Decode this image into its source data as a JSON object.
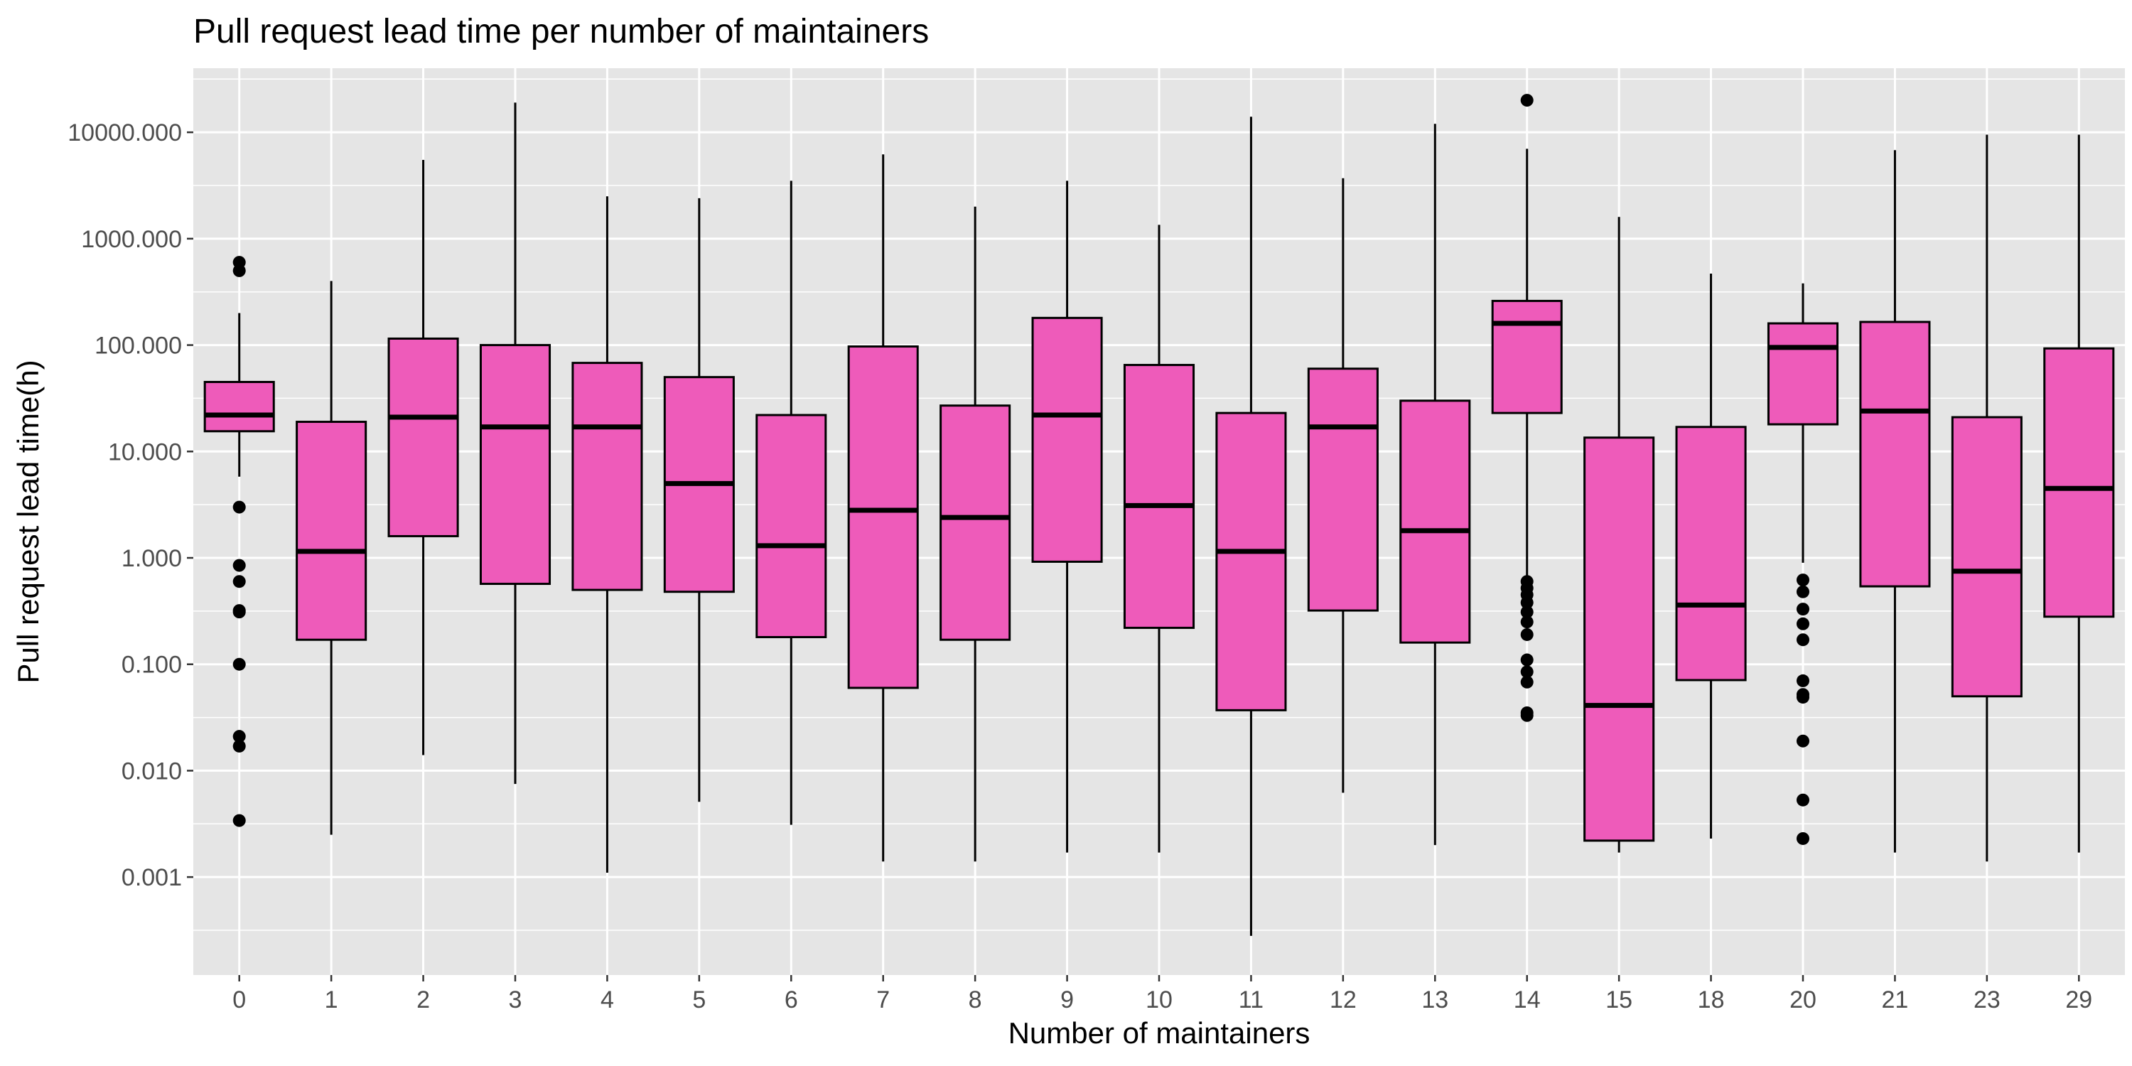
{
  "chart_data": {
    "type": "box",
    "title": "Pull request lead time per number of maintainers",
    "xlabel": "Number of maintainers",
    "ylabel": "Pull request lead time(h)",
    "yscale": "log10",
    "ylim": [
      0.00012,
      40000
    ],
    "ytick_values": [
      0.001,
      0.01,
      0.1,
      1,
      10,
      100,
      1000,
      10000
    ],
    "ytick_labels": [
      "0.001",
      "0.010",
      "0.100",
      "1.000",
      "10.000",
      "100.000",
      "1000.000",
      "10000.000"
    ],
    "grid": true,
    "box_fill": "#ee5bba",
    "box_stroke": "#000000",
    "panel_background": "#e5e5e5",
    "grid_color": "#ffffff",
    "categories": [
      "0",
      "1",
      "2",
      "3",
      "4",
      "5",
      "6",
      "7",
      "8",
      "9",
      "10",
      "11",
      "12",
      "13",
      "14",
      "15",
      "18",
      "20",
      "21",
      "23",
      "29"
    ],
    "boxes": [
      {
        "category": "0",
        "whisker_low": 5.8,
        "q1": 15.5,
        "median": 22,
        "q3": 45,
        "whisker_high": 200,
        "outliers": [
          600,
          500,
          3.0,
          0.85,
          0.6,
          0.32,
          0.31,
          0.1,
          0.021,
          0.017,
          0.0034
        ]
      },
      {
        "category": "1",
        "whisker_low": 0.0025,
        "q1": 0.17,
        "median": 1.15,
        "q3": 19,
        "whisker_high": 400,
        "outliers": []
      },
      {
        "category": "2",
        "whisker_low": 0.014,
        "q1": 1.6,
        "median": 21,
        "q3": 115,
        "whisker_high": 5500,
        "outliers": []
      },
      {
        "category": "3",
        "whisker_low": 0.0075,
        "q1": 0.57,
        "median": 17,
        "q3": 100,
        "whisker_high": 19000,
        "outliers": []
      },
      {
        "category": "4",
        "whisker_low": 0.0011,
        "q1": 0.5,
        "median": 17,
        "q3": 68,
        "whisker_high": 2500,
        "outliers": []
      },
      {
        "category": "5",
        "whisker_low": 0.0051,
        "q1": 0.48,
        "median": 5.0,
        "q3": 50,
        "whisker_high": 2400,
        "outliers": []
      },
      {
        "category": "6",
        "whisker_low": 0.0031,
        "q1": 0.18,
        "median": 1.3,
        "q3": 22,
        "whisker_high": 3500,
        "outliers": []
      },
      {
        "category": "7",
        "whisker_low": 0.0014,
        "q1": 0.06,
        "median": 2.8,
        "q3": 97,
        "whisker_high": 6200,
        "outliers": []
      },
      {
        "category": "8",
        "whisker_low": 0.0014,
        "q1": 0.17,
        "median": 2.4,
        "q3": 27,
        "whisker_high": 2000,
        "outliers": []
      },
      {
        "category": "9",
        "whisker_low": 0.0017,
        "q1": 0.92,
        "median": 22,
        "q3": 180,
        "whisker_high": 3500,
        "outliers": []
      },
      {
        "category": "10",
        "whisker_low": 0.0017,
        "q1": 0.22,
        "median": 3.1,
        "q3": 65,
        "whisker_high": 1350,
        "outliers": []
      },
      {
        "category": "11",
        "whisker_low": 0.00028,
        "q1": 0.037,
        "median": 1.15,
        "q3": 23,
        "whisker_high": 14000,
        "outliers": []
      },
      {
        "category": "12",
        "whisker_low": 0.0062,
        "q1": 0.32,
        "median": 17,
        "q3": 60,
        "whisker_high": 3700,
        "outliers": []
      },
      {
        "category": "13",
        "whisker_low": 0.002,
        "q1": 0.16,
        "median": 1.8,
        "q3": 30,
        "whisker_high": 12000,
        "outliers": []
      },
      {
        "category": "14",
        "whisker_low": 0.65,
        "q1": 23,
        "median": 160,
        "q3": 260,
        "whisker_high": 7000,
        "outliers": [
          20000,
          0.6,
          0.52,
          0.45,
          0.38,
          0.31,
          0.25,
          0.19,
          0.11,
          0.085,
          0.068,
          0.035,
          0.033
        ]
      },
      {
        "category": "15",
        "whisker_low": 0.0017,
        "q1": 0.0022,
        "median": 0.041,
        "q3": 13.5,
        "whisker_high": 1600,
        "outliers": []
      },
      {
        "category": "18",
        "whisker_low": 0.0023,
        "q1": 0.071,
        "median": 0.36,
        "q3": 17,
        "whisker_high": 470,
        "outliers": []
      },
      {
        "category": "20",
        "whisker_low": 0.9,
        "q1": 18,
        "median": 95,
        "q3": 160,
        "whisker_high": 380,
        "outliers": [
          0.62,
          0.48,
          0.33,
          0.24,
          0.17,
          0.07,
          0.052,
          0.049,
          0.019,
          0.0053,
          0.0023
        ]
      },
      {
        "category": "21",
        "whisker_low": 0.0017,
        "q1": 0.54,
        "median": 24,
        "q3": 165,
        "whisker_high": 6800,
        "outliers": []
      },
      {
        "category": "23",
        "whisker_low": 0.0014,
        "q1": 0.05,
        "median": 0.75,
        "q3": 21,
        "whisker_high": 9500,
        "outliers": []
      },
      {
        "category": "29",
        "whisker_low": 0.0017,
        "q1": 0.28,
        "median": 4.5,
        "q3": 93,
        "whisker_high": 9500,
        "outliers": []
      }
    ]
  }
}
